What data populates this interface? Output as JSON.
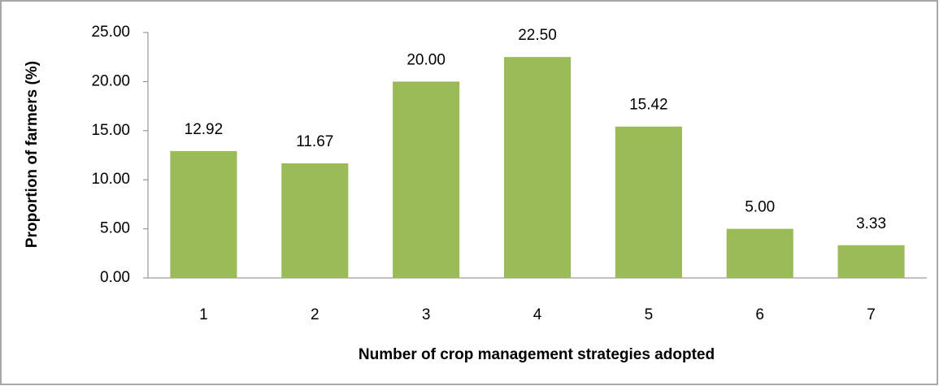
{
  "chart_data": {
    "type": "bar",
    "x_label": "Number of crop management strategies adopted",
    "y_label": "Proportion of farmers (%)",
    "categories": [
      "1",
      "2",
      "3",
      "4",
      "5",
      "6",
      "7"
    ],
    "values": [
      12.92,
      11.67,
      20,
      22.5,
      15.42,
      5,
      3.33
    ],
    "value_labels": [
      "12.92",
      "11.67",
      "20.00",
      "22.50",
      "15.42",
      "5.00",
      "3.33"
    ],
    "color": "#9bbb59",
    "ylim": [
      0,
      25
    ],
    "yticks": [
      {
        "value": 0,
        "label": "0.00"
      },
      {
        "value": 5,
        "label": "5.00"
      },
      {
        "value": 10,
        "label": "10.00"
      },
      {
        "value": 15,
        "label": "15.00"
      },
      {
        "value": 20,
        "label": "20.00"
      },
      {
        "value": 25,
        "label": "25.00"
      }
    ],
    "grid": false
  }
}
